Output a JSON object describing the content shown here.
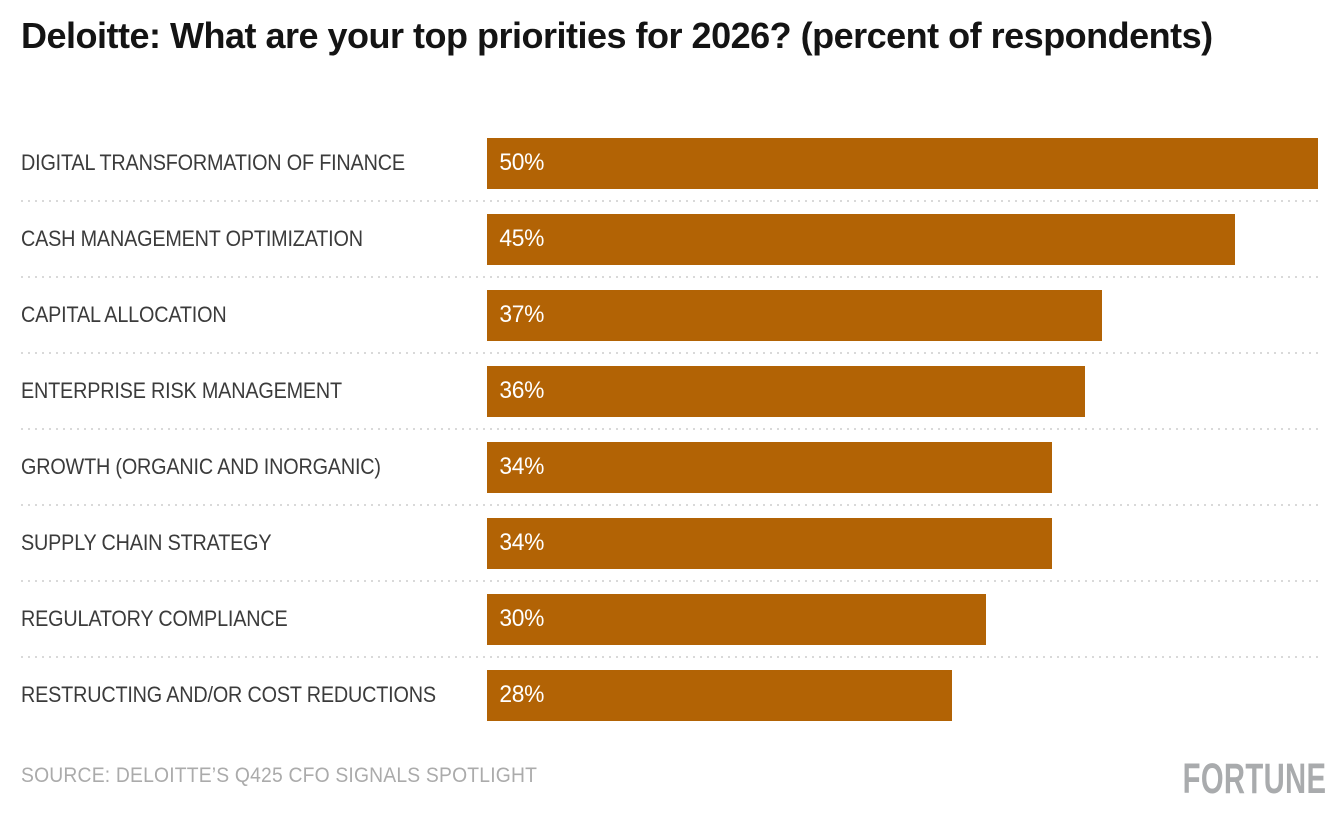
{
  "title": "Deloitte: What are your top priorities for 2026? (percent of respondents)",
  "footer": {
    "source": "SOURCE: DELOITTE’S Q425 CFO SIGNALS SPOTLIGHT",
    "brand": "FORTUNE"
  },
  "colors": {
    "background": "#FFFFFF",
    "bar": "#B26305",
    "bar_value_text": "#FFFFFF",
    "category_text": "#3B3B3B",
    "title_text": "#141414",
    "source_text": "#ABABAB",
    "brand_text": "#A9ABAD",
    "row_separator": "#D9D9D9"
  },
  "chart_data": {
    "type": "bar",
    "orientation": "horizontal",
    "title": "Deloitte: What are your top priorities for 2026? (percent of respondents)",
    "categories": [
      "DIGITAL TRANSFORMATION OF FINANCE",
      "CASH MANAGEMENT OPTIMIZATION",
      "CAPITAL ALLOCATION",
      "ENTERPRISE RISK MANAGEMENT",
      "GROWTH (ORGANIC AND INORGANIC)",
      "SUPPLY CHAIN STRATEGY",
      "REGULATORY COMPLIANCE",
      "RESTRUCTING AND/OR COST REDUCTIONS"
    ],
    "values": [
      50,
      45,
      37,
      36,
      34,
      34,
      30,
      28
    ],
    "value_labels": [
      "50%",
      "45%",
      "37%",
      "36%",
      "34%",
      "34%",
      "30%",
      "28%"
    ],
    "unit": "percent of respondents",
    "xlim": [
      0,
      50
    ],
    "grid": "dotted horizontal row separators",
    "legend": "none",
    "value_label_position": "inside-left",
    "bar_color": "#B26305"
  }
}
